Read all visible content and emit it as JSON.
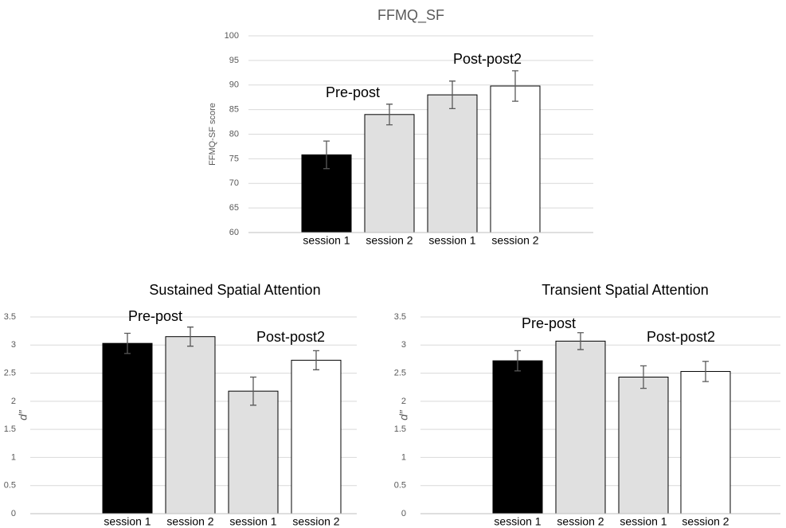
{
  "chart_data": [
    {
      "type": "bar",
      "title": "FFMQ_SF",
      "ylabel": "FFMQ-SF score",
      "categories": [
        "session 1",
        "session 2",
        "session 1",
        "session 2"
      ],
      "values": [
        75.8,
        84,
        88,
        89.8
      ],
      "errors": [
        2.8,
        2.1,
        2.8,
        3.1
      ],
      "colors": [
        "#000000",
        "#e0e0e0",
        "#e0e0e0",
        "#ffffff"
      ],
      "ylim": [
        60,
        100
      ],
      "yticks": [
        60,
        65,
        70,
        75,
        80,
        85,
        90,
        95,
        100
      ],
      "grid": true,
      "annotations": [
        "Pre-post",
        "Post-post2"
      ]
    },
    {
      "type": "bar",
      "title": "Sustained Spatial Attention",
      "ylabel": "d″",
      "categories": [
        "session 1",
        "session 2",
        "session 1",
        "session 2"
      ],
      "values": [
        3.03,
        3.15,
        2.18,
        2.73
      ],
      "errors": [
        0.18,
        0.17,
        0.25,
        0.17
      ],
      "colors": [
        "#000000",
        "#e0e0e0",
        "#e0e0e0",
        "#ffffff"
      ],
      "ylim": [
        0,
        3.5
      ],
      "yticks": [
        0,
        0.5,
        1,
        1.5,
        2,
        2.5,
        3,
        3.5
      ],
      "grid": true,
      "annotations": [
        "Pre-post",
        "Post-post2"
      ]
    },
    {
      "type": "bar",
      "title": "Transient Spatial Attention",
      "ylabel": "d″",
      "categories": [
        "session 1",
        "session 2",
        "session 1",
        "session 2"
      ],
      "values": [
        2.72,
        3.07,
        2.43,
        2.53
      ],
      "errors": [
        0.18,
        0.15,
        0.2,
        0.18
      ],
      "colors": [
        "#000000",
        "#e0e0e0",
        "#e0e0e0",
        "#ffffff"
      ],
      "ylim": [
        0,
        3.5
      ],
      "yticks": [
        0,
        0.5,
        1,
        1.5,
        2,
        2.5,
        3,
        3.5
      ],
      "grid": true,
      "annotations": [
        "Pre-post",
        "Post-post2"
      ]
    }
  ]
}
